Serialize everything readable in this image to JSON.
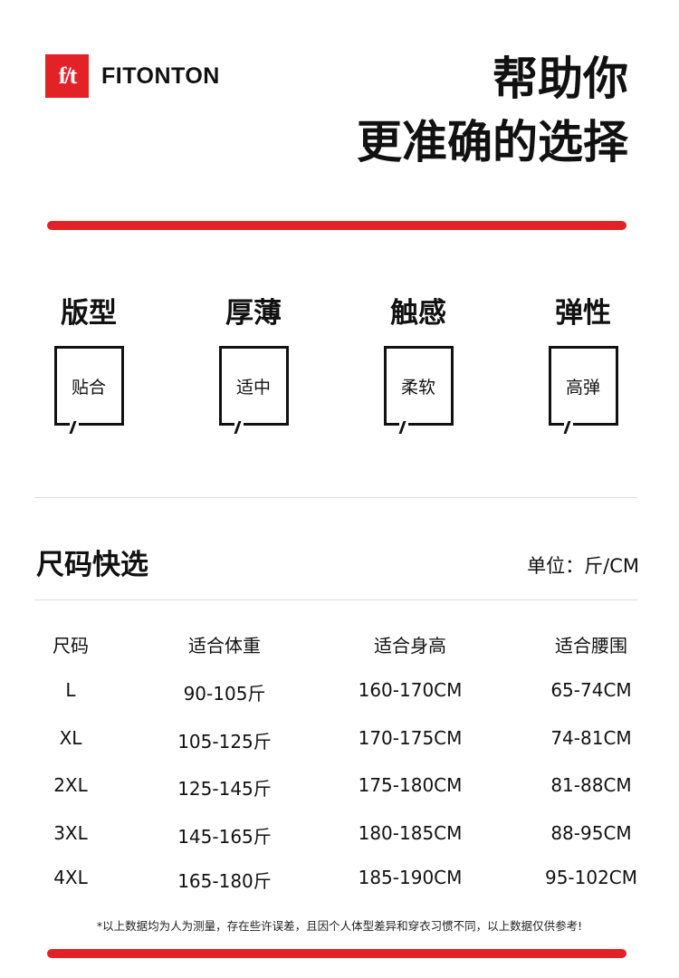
{
  "brand": {
    "logo_text": "f/t",
    "name": "FITONTON",
    "color": "#e32228"
  },
  "headline": {
    "line1": "帮助你",
    "line2": "更准确的选择"
  },
  "attributes": [
    {
      "title": "版型",
      "value": "贴合"
    },
    {
      "title": "厚薄",
      "value": "适中"
    },
    {
      "title": "触感",
      "value": "柔软"
    },
    {
      "title": "弹性",
      "value": "高弹"
    }
  ],
  "size_section": {
    "title": "尺码快选",
    "unit": "单位：斤/CM"
  },
  "table": {
    "headers": [
      "尺码",
      "适合体重",
      "适合身高",
      "适合腰围"
    ],
    "rows": [
      [
        "L",
        "90-105斤",
        "160-170CM",
        "65-74CM"
      ],
      [
        "XL",
        "105-125斤",
        "170-175CM",
        "74-81CM"
      ],
      [
        "2XL",
        "125-145斤",
        "175-180CM",
        "81-88CM"
      ],
      [
        "3XL",
        "145-165斤",
        "180-185CM",
        "88-95CM"
      ],
      [
        "4XL",
        "165-180斤",
        "185-190CM",
        "95-102CM"
      ]
    ]
  },
  "note": "*以上数据均为人为测量，存在些许误差，且因个人体型差异和穿衣习惯不同，以上数据仅供参考!"
}
